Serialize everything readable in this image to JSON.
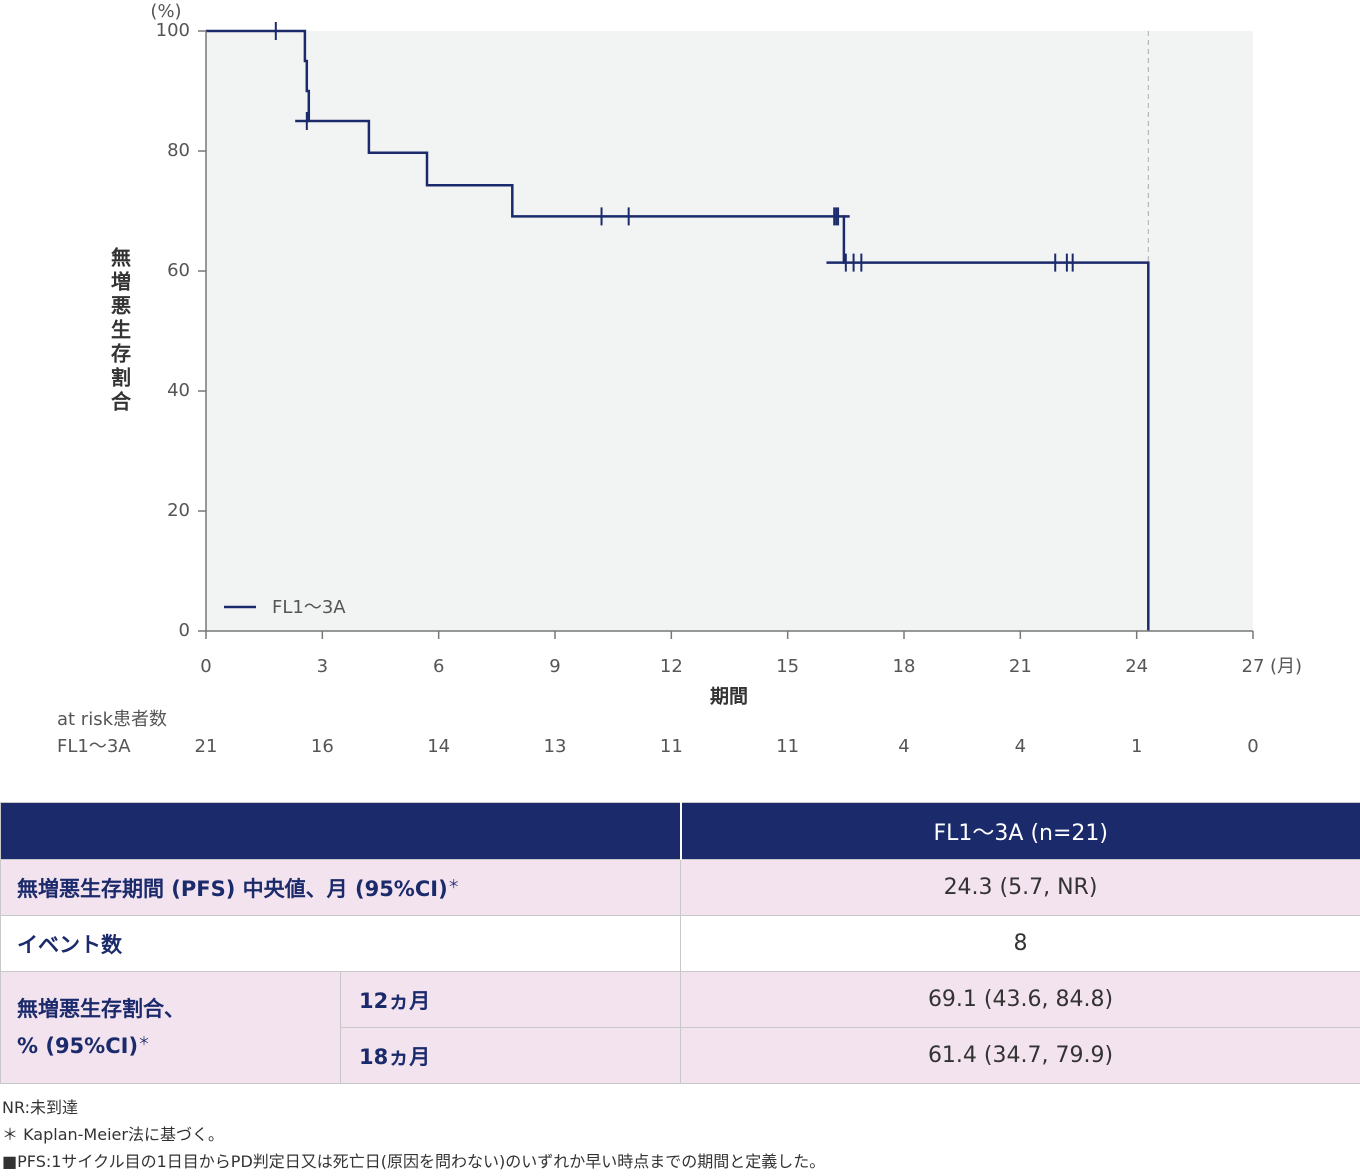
{
  "chart_data": {
    "type": "line",
    "step": true,
    "x_unit": "(月)",
    "y_unit": "(%)",
    "ylabel": "無増悪生存割合",
    "xlabel": "期間",
    "xlim": [
      0,
      27
    ],
    "ylim": [
      0,
      100
    ],
    "x_ticks": [
      0,
      3,
      6,
      9,
      12,
      15,
      18,
      21,
      24,
      27
    ],
    "y_ticks": [
      0,
      20,
      40,
      60,
      80,
      100
    ],
    "reference_line_x": 24.3,
    "legend": {
      "position": "bottom-left",
      "label": "FL1〜3A"
    },
    "series": [
      {
        "name": "FL1〜3A",
        "color": "#1b2a6b",
        "x": [
          0,
          2.55,
          2.55,
          2.6,
          2.6,
          2.65,
          2.65,
          4.2,
          4.2,
          5.7,
          5.7,
          7.9,
          7.9,
          16.45,
          16.45,
          24.3,
          24.3
        ],
        "y": [
          100,
          100,
          95,
          95,
          90,
          90,
          85,
          85,
          79.7,
          79.7,
          74.3,
          74.3,
          69.1,
          69.1,
          61.4,
          61.4,
          0
        ],
        "censor_x": [
          1.8,
          2.6,
          10.2,
          10.9,
          16.2,
          16.25,
          16.3,
          16.5,
          16.7,
          16.9,
          21.9,
          22.2,
          22.35
        ],
        "censor_y": [
          100,
          85,
          69.1,
          69.1,
          69.1,
          69.1,
          69.1,
          61.4,
          61.4,
          61.4,
          61.4,
          61.4,
          61.4
        ],
        "extra_segments": [
          {
            "x": [
              2.3,
              2.65
            ],
            "y": [
              85,
              85
            ]
          },
          {
            "x": [
              16.45,
              16.6
            ],
            "y": [
              69.1,
              69.1
            ]
          },
          {
            "x": [
              16.0,
              16.45
            ],
            "y": [
              61.4,
              61.4
            ]
          }
        ]
      }
    ]
  },
  "at_risk": {
    "title": "at risk患者数",
    "group_label": "FL1〜3A",
    "values": [
      21,
      16,
      14,
      13,
      11,
      11,
      4,
      4,
      1,
      0
    ]
  },
  "table": {
    "header_group": "FL1〜3A (n=21)",
    "row1_label": "無増悪生存期間 (PFS) 中央値、月 (95%CI)",
    "row1_mark": "＊",
    "row1_value": "24.3 (5.7, NR)",
    "row2_label": "イベント数",
    "row2_value": "8",
    "row3_label_line1": "無増悪生存割合、",
    "row3_label_line2": "% (95%CI)",
    "row3_mark": "＊",
    "row3a_sub": "12ヵ月",
    "row3a_value": "69.1 (43.6, 84.8)",
    "row3b_sub": "18ヵ月",
    "row3b_value": "61.4 (34.7, 79.9)"
  },
  "footnotes": {
    "line1": "NR:未到達",
    "line2": "＊ Kaplan-Meier法に基づく。",
    "line3": "■PFS:1サイクル目の1日目からPD判定日又は死亡日(原因を問わない)のいずれか早い時点までの期間と定義した。"
  }
}
